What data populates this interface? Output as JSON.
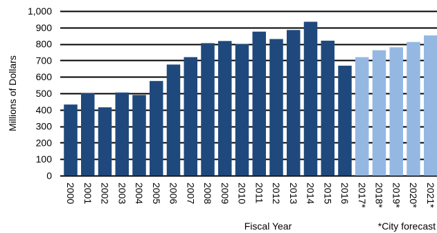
{
  "chart_data": {
    "type": "bar",
    "categories": [
      "2000",
      "2001",
      "2002",
      "2003",
      "2004",
      "2005",
      "2006",
      "2007",
      "2008",
      "2009",
      "2010",
      "2011",
      "2012",
      "2013",
      "2014",
      "2015",
      "2016",
      "2017*",
      "2018*",
      "2019*",
      "2020*",
      "2021*"
    ],
    "series": [
      {
        "values": [
          432,
          500,
          415,
          505,
          490,
          575,
          675,
          720,
          805,
          818,
          800,
          875,
          830,
          885,
          935,
          820,
          668,
          720,
          762,
          780,
          812,
          852
        ]
      }
    ],
    "forecast_flags": [
      false,
      false,
      false,
      false,
      false,
      false,
      false,
      false,
      false,
      false,
      false,
      false,
      false,
      false,
      false,
      false,
      false,
      true,
      true,
      true,
      true,
      true
    ],
    "colors": {
      "actual": "#1f497d",
      "forecast": "#95b8e3",
      "grid": "#000000"
    },
    "ylim": [
      0,
      1000
    ],
    "yticks": [
      0,
      100,
      200,
      300,
      400,
      500,
      600,
      700,
      800,
      900,
      1000
    ],
    "ytick_labels": [
      "0",
      "100",
      "200",
      "300",
      "400",
      "500",
      "600",
      "700",
      "800",
      "900",
      "1,000"
    ],
    "ylabel": "Millions of Dollars",
    "xlabel": "Fiscal Year",
    "footnote": "*City forecast",
    "grid": true,
    "legend": "none"
  }
}
